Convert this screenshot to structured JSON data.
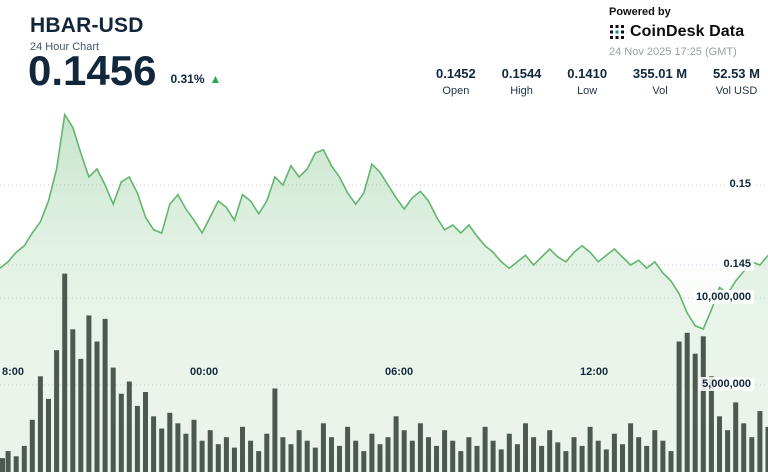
{
  "header": {
    "symbol": "HBAR-USD",
    "subtitle": "24 Hour Chart",
    "price": "0.1456",
    "change_pct": "0.31%",
    "change_direction": "up",
    "up_arrow": "▲"
  },
  "powered_by": {
    "label": "Powered by",
    "brand": "CoinDesk Data",
    "timestamp": "24 Nov 2025 17:25 (GMT)"
  },
  "stats": [
    {
      "value": "0.1452",
      "label": "Open"
    },
    {
      "value": "0.1544",
      "label": "High"
    },
    {
      "value": "0.1410",
      "label": "Low"
    },
    {
      "value": "355.01 M",
      "label": "Vol"
    },
    {
      "value": "52.53 M",
      "label": "Vol USD"
    }
  ],
  "colors": {
    "accent_green": "#2ea84f",
    "line_green": "#63b56e",
    "area_green": "#cfe9d2",
    "volume_bar": "#4b5951",
    "text_dark": "#10273c",
    "grid": "#bcc3cb"
  },
  "chart_data": {
    "type": "area",
    "title": "HBAR-USD 24 Hour Chart",
    "x_axis_labels": [
      "8:00",
      "00:00",
      "06:00",
      "12:00"
    ],
    "y_axis_price_labels": [
      "0.15",
      "0.145"
    ],
    "y_axis_price_values": [
      0.15,
      0.145
    ],
    "y_axis_volume_labels": [
      "10,000,000",
      "5,000,000"
    ],
    "y_axis_volume_values_millions": [
      10,
      5
    ],
    "price_ylim": [
      0.14,
      0.155
    ],
    "volume_ylim_millions": [
      0,
      13.5
    ],
    "grid": "dotted-horizontal",
    "series": [
      {
        "name": "price",
        "type": "area-line",
        "values": [
          0.1448,
          0.1452,
          0.1458,
          0.1462,
          0.147,
          0.1477,
          0.149,
          0.151,
          0.1544,
          0.1536,
          0.152,
          0.1505,
          0.151,
          0.15,
          0.1488,
          0.1502,
          0.1505,
          0.1495,
          0.148,
          0.1472,
          0.147,
          0.1488,
          0.1494,
          0.1485,
          0.1478,
          0.147,
          0.148,
          0.149,
          0.1486,
          0.1478,
          0.1494,
          0.149,
          0.1482,
          0.149,
          0.1505,
          0.15,
          0.1512,
          0.1505,
          0.151,
          0.152,
          0.1522,
          0.1512,
          0.1505,
          0.1495,
          0.1488,
          0.1495,
          0.1513,
          0.1508,
          0.15,
          0.1492,
          0.1485,
          0.1492,
          0.1496,
          0.149,
          0.148,
          0.1472,
          0.1475,
          0.147,
          0.1475,
          0.1468,
          0.1462,
          0.1458,
          0.1452,
          0.1448,
          0.1452,
          0.1456,
          0.145,
          0.1455,
          0.146,
          0.1455,
          0.1452,
          0.1458,
          0.1462,
          0.1458,
          0.1452,
          0.1456,
          0.146,
          0.1455,
          0.145,
          0.1453,
          0.1448,
          0.1452,
          0.1445,
          0.144,
          0.1432,
          0.142,
          0.1412,
          0.141,
          0.1422,
          0.1436,
          0.1432,
          0.144,
          0.1446,
          0.1452,
          0.145,
          0.1456
        ]
      },
      {
        "name": "volume",
        "type": "bar",
        "unit": "millions",
        "values": [
          0.8,
          1.2,
          0.9,
          1.5,
          3.0,
          5.5,
          4.2,
          7.0,
          11.4,
          8.2,
          6.5,
          9.0,
          7.5,
          8.8,
          6.0,
          4.5,
          5.2,
          3.8,
          4.6,
          3.2,
          2.5,
          3.4,
          2.8,
          2.2,
          3.0,
          1.8,
          2.4,
          1.6,
          2.0,
          1.4,
          2.6,
          1.8,
          1.2,
          2.2,
          4.8,
          2.0,
          1.6,
          2.4,
          1.8,
          1.4,
          2.8,
          2.0,
          1.5,
          2.6,
          1.8,
          1.2,
          2.2,
          1.6,
          2.0,
          3.2,
          2.4,
          1.8,
          2.8,
          2.0,
          1.5,
          2.4,
          1.8,
          1.2,
          2.0,
          1.5,
          2.6,
          1.8,
          1.3,
          2.2,
          1.6,
          2.8,
          2.0,
          1.5,
          2.4,
          1.7,
          1.2,
          2.0,
          1.5,
          2.6,
          1.8,
          1.3,
          2.2,
          1.6,
          2.8,
          2.0,
          1.5,
          2.4,
          1.8,
          1.2,
          7.5,
          8.0,
          6.8,
          7.8,
          5.5,
          3.2,
          2.4,
          4.0,
          2.8,
          2.0,
          3.5,
          2.6
        ]
      }
    ]
  }
}
